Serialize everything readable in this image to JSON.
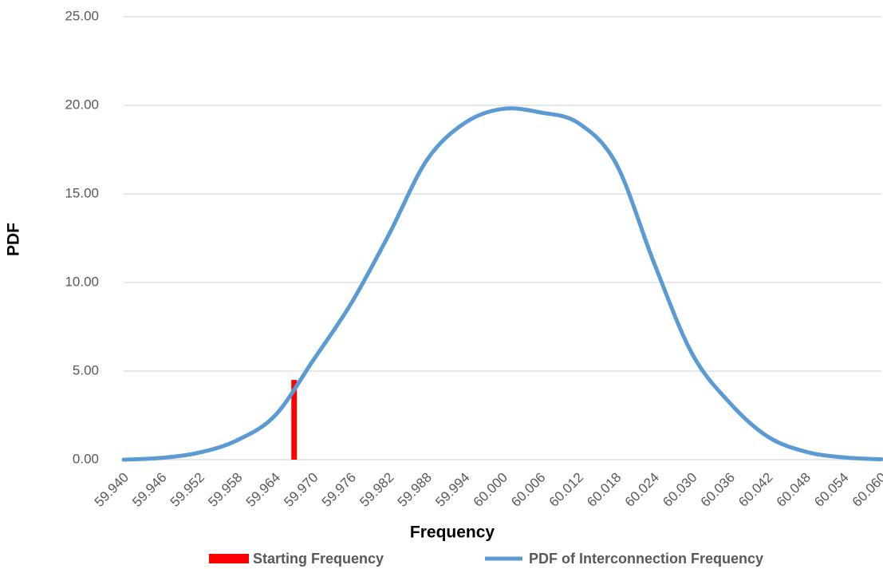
{
  "chart_data": {
    "type": "line",
    "x_label": "Frequency",
    "y_label": "PDF",
    "xlim": [
      59.94,
      60.06
    ],
    "xticks": [
      {
        "value": 59.94,
        "label": "59.940"
      },
      59.946,
      59.952,
      59.958,
      59.964,
      {
        "value": 59.97,
        "label": "59.970"
      },
      59.976,
      59.982,
      59.988,
      59.994,
      {
        "value": 60,
        "label": "60.000"
      },
      60.006,
      60.012,
      60.018,
      60.024,
      {
        "value": 60.03,
        "label": "60.030"
      },
      60.036,
      60.042,
      60.048,
      60.054,
      {
        "value": 60.06,
        "label": "60.060"
      }
    ],
    "ylim": [
      0,
      25
    ],
    "yticks": [
      {
        "value": 0,
        "label": "0.00"
      },
      {
        "value": 5,
        "label": "5.00"
      },
      {
        "value": 10,
        "label": "10.00"
      },
      {
        "value": 15,
        "label": "15.00"
      },
      {
        "value": 20,
        "label": "20.00"
      },
      {
        "value": 25,
        "label": "25.00"
      }
    ],
    "grid": true,
    "series": [
      {
        "name": "Starting Frequency",
        "color": "#ff0000",
        "kind": "bar",
        "x": [
          59.967
        ],
        "values": [
          4.5
        ]
      },
      {
        "name": "PDF of Interconnection Frequency",
        "color": "#5b9bd5",
        "kind": "line",
        "x": [
          59.94,
          59.946,
          59.952,
          59.958,
          59.964,
          59.97,
          59.976,
          59.982,
          59.988,
          59.994,
          60,
          60.006,
          60.012,
          60.018,
          60.024,
          60.03,
          60.036,
          60.042,
          60.048,
          60.054,
          60.06
        ],
        "values": [
          0.0,
          0.1,
          0.4,
          1.1,
          2.5,
          5.6,
          8.8,
          12.7,
          16.9,
          19.0,
          19.8,
          19.6,
          19.0,
          16.7,
          11.1,
          6.0,
          3.2,
          1.3,
          0.45,
          0.13,
          0.02
        ]
      }
    ]
  }
}
